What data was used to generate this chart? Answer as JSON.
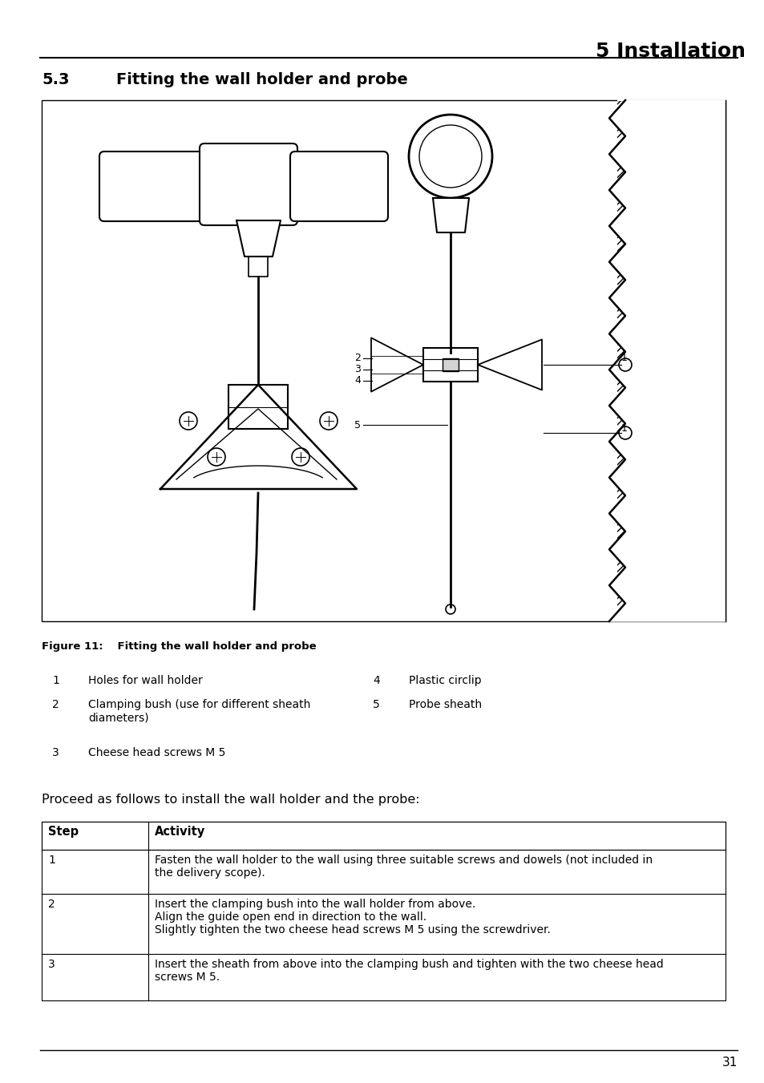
{
  "page_bg": "#ffffff",
  "header_title": "5 Installation",
  "section_number": "5.3",
  "section_title": "Fitting the wall holder and probe",
  "figure_caption": "Figure 11:  Fitting the wall holder and probe",
  "legend_items_left": [
    {
      "num": "1",
      "text": "Holes for wall holder"
    },
    {
      "num": "2",
      "text": "Clamping bush (use for different sheath\ndiameters)"
    },
    {
      "num": "3",
      "text": "Cheese head screws M 5"
    }
  ],
  "legend_items_right": [
    {
      "num": "4",
      "text": "Plastic circlip"
    },
    {
      "num": "5",
      "text": "Probe sheath"
    }
  ],
  "proceed_text": "Proceed as follows to install the wall holder and the probe:",
  "table_headers": [
    "Step",
    "Activity"
  ],
  "table_rows": [
    [
      "1",
      "Fasten the wall holder to the wall using three suitable screws and dowels (not included in\nthe delivery scope)."
    ],
    [
      "2",
      "Insert the clamping bush into the wall holder from above.\nAlign the guide open end in direction to the wall.\nSlightly tighten the two cheese head screws M 5 using the screwdriver."
    ],
    [
      "3",
      "Insert the sheath from above into the clamping bush and tighten with the two cheese head\nscrews M 5."
    ]
  ],
  "page_number": "31"
}
